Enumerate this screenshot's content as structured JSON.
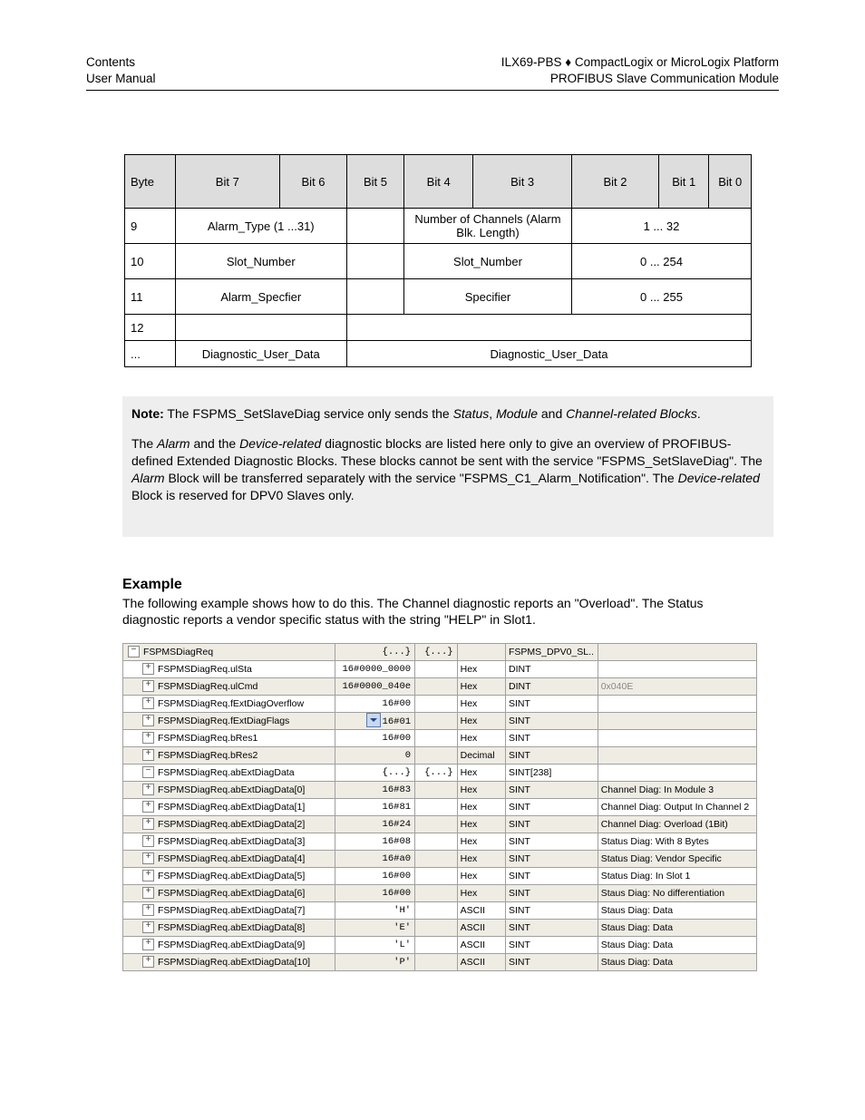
{
  "header": {
    "left_line1": "Contents",
    "left_line2": "User Manual",
    "right_line1_pre": "ILX69-PBS ",
    "right_line1_diamond": "♦",
    "right_line1_post": " CompactLogix or MicroLogix Platform",
    "right_line2": "PROFIBUS Slave Communication Module"
  },
  "bits_table": {
    "header_cells": [
      "Byte",
      "Bit 7",
      "Bit 6",
      "Bit 5",
      "Bit 4",
      "Bit 3",
      "Bit 2",
      "Bit 1",
      "Bit 0"
    ],
    "rows": [
      {
        "height": "tall",
        "cells": [
          {
            "text": "9",
            "class": "left",
            "span": 1
          },
          {
            "text": "Alarm_Type (1 ...31)",
            "span": 2
          },
          {
            "text": "",
            "span": 1
          },
          {
            "text": "Number of Channels (Alarm Blk. Length)",
            "span": 2
          },
          {
            "text": "1 ... 32",
            "span": 3
          }
        ]
      },
      {
        "height": "tall",
        "cells": [
          {
            "text": "10",
            "class": "left",
            "span": 1
          },
          {
            "text": "Slot_Number",
            "span": 2
          },
          {
            "text": "",
            "span": 1
          },
          {
            "text": "Slot_Number",
            "span": 2
          },
          {
            "text": "0 ... 254",
            "span": 3
          }
        ]
      },
      {
        "height": "tall",
        "cells": [
          {
            "text": "11",
            "class": "left",
            "span": 1
          },
          {
            "text": "Alarm_Specfier",
            "span": 2
          },
          {
            "text": "",
            "span": 1
          },
          {
            "text": "Specifier",
            "span": 2
          },
          {
            "text": "0 ... 255",
            "span": 3
          }
        ]
      },
      {
        "height": "shorttall",
        "cells": [
          {
            "text": "12",
            "class": "left",
            "span": 1
          },
          {
            "text": "",
            "span": 2
          },
          {
            "text": "",
            "span": 6
          }
        ]
      },
      {
        "height": "shorttall",
        "cells": [
          {
            "text": "...",
            "class": "left",
            "span": 1
          },
          {
            "text": "Diagnostic_User_Data",
            "span": 2
          },
          {
            "text": "Diagnostic_User_Data",
            "span": 6
          }
        ]
      }
    ]
  },
  "note_box": {
    "lead": "Note:",
    "line1_pre": "  The FSPMS_SetSlaveDiag service only sends the ",
    "i1": "Status",
    "i2": "Module",
    "i3": "Channel-related Blocks",
    "p2_pre": "The ",
    "p2_i1": "Alarm",
    "p2_mid1": " and the ",
    "p2_i2": "Device-related",
    "p2_mid2": " diagnostic blocks are listed here only to give an overview of PROFIBUS-defined Extended Diagnostic Blocks. These blocks cannot be sent with the service \"FSPMS_SetSlaveDiag\". The ",
    "p2_i3": "Alarm",
    "p2_mid3": " Block will be transferred separately with the service \"FSPMS_C1_Alarm_Notification\". The ",
    "p2_i4": "Device-related",
    "p2_end": " Block is reserved for DPV0 Slaves only."
  },
  "example": {
    "title": "Example",
    "paragraph": "The following example shows how to do this. The Channel diagnostic reports an \"Overload\". The Status diagnostic reports a vendor specific status with the string \"HELP\" in Slot1."
  },
  "grid": {
    "rows": [
      {
        "tree": "minus",
        "depth": 1,
        "name": "FSPMSDiagReq",
        "v1": "{...}",
        "v2": "{...}",
        "style": "",
        "type": "FSPMS_DPV0_SL..",
        "desc": "",
        "dd": false
      },
      {
        "tree": "plus",
        "depth": 2,
        "name": "FSPMSDiagReq.ulSta",
        "v1": "16#0000_0000",
        "v2": "",
        "style": "Hex",
        "type": "DINT",
        "desc": "",
        "dd": false
      },
      {
        "tree": "plus",
        "depth": 2,
        "name": "FSPMSDiagReq.ulCmd",
        "v1": "16#0000_040e",
        "v2": "",
        "style": "Hex",
        "type": "DINT",
        "desc": "0x040E",
        "descGrey": true,
        "dd": false
      },
      {
        "tree": "plus",
        "depth": 2,
        "name": "FSPMSDiagReq.fExtDiagOverflow",
        "v1": "16#00",
        "v2": "",
        "style": "Hex",
        "type": "SINT",
        "desc": "",
        "dd": false
      },
      {
        "tree": "plus",
        "depth": 2,
        "name": "FSPMSDiagReq.fExtDiagFlags",
        "v1": "16#01",
        "v2": "",
        "style": "Hex",
        "type": "SINT",
        "desc": "",
        "dd": true
      },
      {
        "tree": "plus",
        "depth": 2,
        "name": "FSPMSDiagReq.bRes1",
        "v1": "16#00",
        "v2": "",
        "style": "Hex",
        "type": "SINT",
        "desc": "",
        "dd": false
      },
      {
        "tree": "plus",
        "depth": 2,
        "name": "FSPMSDiagReq.bRes2",
        "v1": "0",
        "v2": "",
        "style": "Decimal",
        "type": "SINT",
        "desc": "",
        "dd": false
      },
      {
        "tree": "minus",
        "depth": 2,
        "name": "FSPMSDiagReq.abExtDiagData",
        "v1": "{...}",
        "v2": "{...}",
        "style": "Hex",
        "type": "SINT[238]",
        "desc": "",
        "dd": false
      },
      {
        "tree": "plus",
        "depth": 2,
        "name": "FSPMSDiagReq.abExtDiagData[0]",
        "v1": "16#83",
        "v2": "",
        "style": "Hex",
        "type": "SINT",
        "desc": "Channel Diag:  In Module 3",
        "dd": false
      },
      {
        "tree": "plus",
        "depth": 2,
        "name": "FSPMSDiagReq.abExtDiagData[1]",
        "v1": "16#81",
        "v2": "",
        "style": "Hex",
        "type": "SINT",
        "desc": "Channel Diag: Output In Channel 2",
        "dd": false
      },
      {
        "tree": "plus",
        "depth": 2,
        "name": "FSPMSDiagReq.abExtDiagData[2]",
        "v1": "16#24",
        "v2": "",
        "style": "Hex",
        "type": "SINT",
        "desc": "Channel Diag: Overload (1Bit)",
        "dd": false
      },
      {
        "tree": "plus",
        "depth": 2,
        "name": "FSPMSDiagReq.abExtDiagData[3]",
        "v1": "16#08",
        "v2": "",
        "style": "Hex",
        "type": "SINT",
        "desc": "Status Diag: With 8 Bytes",
        "dd": false
      },
      {
        "tree": "plus",
        "depth": 2,
        "name": "FSPMSDiagReq.abExtDiagData[4]",
        "v1": "16#a0",
        "v2": "",
        "style": "Hex",
        "type": "SINT",
        "desc": "Status Diag: Vendor Specific",
        "dd": false
      },
      {
        "tree": "plus",
        "depth": 2,
        "name": "FSPMSDiagReq.abExtDiagData[5]",
        "v1": "16#00",
        "v2": "",
        "style": "Hex",
        "type": "SINT",
        "desc": "Status Diag: In Slot 1",
        "dd": false
      },
      {
        "tree": "plus",
        "depth": 2,
        "name": "FSPMSDiagReq.abExtDiagData[6]",
        "v1": "16#00",
        "v2": "",
        "style": "Hex",
        "type": "SINT",
        "desc": "Staus Diag: No differentiation",
        "dd": false
      },
      {
        "tree": "plus",
        "depth": 2,
        "name": "FSPMSDiagReq.abExtDiagData[7]",
        "v1": "'H'",
        "v2": "",
        "style": "ASCII",
        "type": "SINT",
        "desc": "Staus Diag: Data",
        "dd": false
      },
      {
        "tree": "plus",
        "depth": 2,
        "name": "FSPMSDiagReq.abExtDiagData[8]",
        "v1": "'E'",
        "v2": "",
        "style": "ASCII",
        "type": "SINT",
        "desc": "Staus Diag: Data",
        "dd": false
      },
      {
        "tree": "plus",
        "depth": 2,
        "name": "FSPMSDiagReq.abExtDiagData[9]",
        "v1": "'L'",
        "v2": "",
        "style": "ASCII",
        "type": "SINT",
        "desc": "Staus Diag: Data",
        "dd": false
      },
      {
        "tree": "plus",
        "depth": 2,
        "name": "FSPMSDiagReq.abExtDiagData[10]",
        "v1": "'P'",
        "v2": "",
        "style": "ASCII",
        "type": "SINT",
        "desc": "Staus Diag: Data",
        "dd": false
      }
    ]
  }
}
